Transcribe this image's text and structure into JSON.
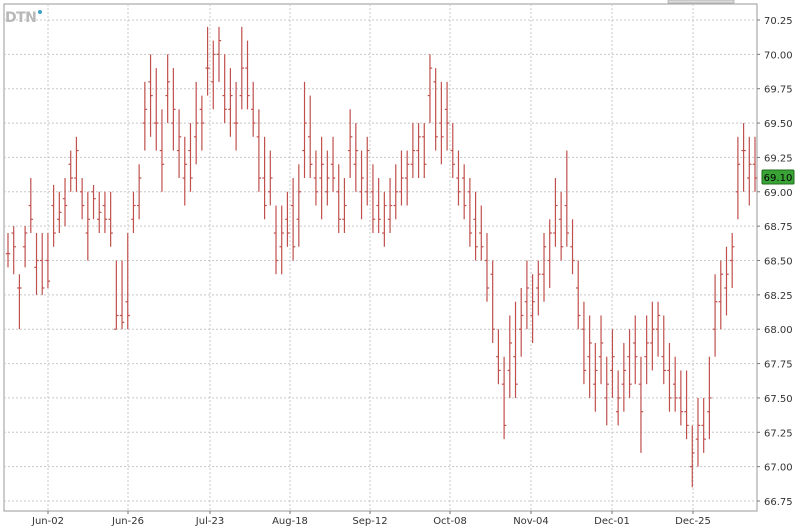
{
  "brand": {
    "logo_text": "DTN"
  },
  "chart_data": {
    "type": "bar",
    "subtype": "ohlc",
    "title": "",
    "xlabel": "",
    "ylabel": "",
    "ylim": [
      66.7,
      70.3
    ],
    "y_ticks": [
      "70.25",
      "70.00",
      "69.75",
      "69.50",
      "69.25",
      "69.00",
      "68.75",
      "68.50",
      "68.25",
      "68.00",
      "67.75",
      "67.50",
      "67.25",
      "67.00",
      "66.75"
    ],
    "x_ticks": [
      "Jun-02",
      "Jun-26",
      "Jul-23",
      "Aug-18",
      "Sep-12",
      "Oct-08",
      "Nov-04",
      "Dec-01",
      "Dec-25"
    ],
    "grid": true,
    "last_price": "69.10",
    "colors": {
      "bar": "#c0504d",
      "grid": "#c8c8c8",
      "last_price_bg": "#3aa335",
      "logo_dot": "#3aa2c8"
    },
    "series": [
      {
        "values": [
          [
            68.55,
            68.7,
            68.45,
            68.55
          ],
          [
            68.7,
            68.75,
            68.4,
            68.6
          ],
          [
            68.3,
            68.4,
            68.0,
            68.3
          ],
          [
            68.6,
            68.75,
            68.45,
            68.7
          ],
          [
            68.9,
            69.1,
            68.7,
            68.8
          ],
          [
            68.45,
            68.7,
            68.25,
            68.5
          ],
          [
            68.5,
            68.7,
            68.25,
            68.3
          ],
          [
            68.5,
            68.7,
            68.3,
            68.35
          ],
          [
            68.9,
            69.05,
            68.6,
            68.7
          ],
          [
            68.8,
            69.0,
            68.7,
            68.85
          ],
          [
            68.95,
            69.1,
            68.75,
            68.9
          ],
          [
            69.2,
            69.3,
            69.0,
            69.1
          ],
          [
            69.1,
            69.4,
            69.0,
            69.3
          ],
          [
            69.0,
            69.1,
            68.8,
            68.9
          ],
          [
            68.7,
            69.0,
            68.5,
            68.8
          ],
          [
            69.0,
            69.05,
            68.8,
            68.95
          ],
          [
            68.8,
            69.0,
            68.7,
            68.85
          ],
          [
            68.9,
            69.0,
            68.7,
            68.8
          ],
          [
            68.8,
            69.0,
            68.6,
            68.7
          ],
          [
            68.0,
            68.5,
            68.0,
            68.1
          ],
          [
            68.1,
            68.5,
            68.0,
            68.05
          ],
          [
            68.2,
            68.7,
            68.0,
            68.1
          ],
          [
            68.8,
            69.0,
            68.7,
            68.9
          ],
          [
            68.9,
            69.2,
            68.8,
            69.1
          ],
          [
            69.5,
            69.8,
            69.3,
            69.6
          ],
          [
            69.8,
            70.0,
            69.4,
            69.7
          ],
          [
            69.5,
            69.9,
            69.3,
            69.5
          ],
          [
            69.3,
            69.6,
            69.0,
            69.2
          ],
          [
            69.7,
            70.0,
            69.5,
            69.8
          ],
          [
            69.5,
            69.9,
            69.3,
            69.6
          ],
          [
            69.3,
            69.6,
            69.1,
            69.4
          ],
          [
            69.1,
            69.4,
            68.9,
            69.2
          ],
          [
            69.3,
            69.5,
            69.0,
            69.1
          ],
          [
            69.4,
            69.8,
            69.2,
            69.5
          ],
          [
            69.6,
            69.7,
            69.3,
            69.5
          ],
          [
            69.9,
            70.2,
            69.7,
            69.9
          ],
          [
            69.8,
            70.1,
            69.6,
            70.0
          ],
          [
            70.0,
            70.2,
            69.8,
            70.1
          ],
          [
            69.7,
            70.0,
            69.5,
            69.6
          ],
          [
            69.6,
            69.9,
            69.4,
            69.7
          ],
          [
            69.5,
            69.8,
            69.3,
            69.5
          ],
          [
            69.7,
            70.2,
            69.6,
            69.9
          ],
          [
            69.9,
            70.1,
            69.6,
            69.7
          ],
          [
            69.6,
            69.8,
            69.4,
            69.5
          ],
          [
            69.4,
            69.6,
            69.0,
            69.1
          ],
          [
            69.1,
            69.4,
            68.8,
            68.9
          ],
          [
            69.0,
            69.3,
            68.9,
            69.1
          ],
          [
            68.7,
            68.9,
            68.4,
            68.5
          ],
          [
            68.6,
            68.9,
            68.4,
            68.7
          ],
          [
            68.8,
            69.0,
            68.6,
            68.7
          ],
          [
            68.9,
            69.1,
            68.5,
            68.6
          ],
          [
            68.8,
            69.2,
            68.6,
            69.0
          ],
          [
            69.3,
            69.8,
            69.1,
            69.5
          ],
          [
            69.4,
            69.7,
            69.1,
            69.2
          ],
          [
            69.1,
            69.3,
            68.9,
            69.0
          ],
          [
            69.1,
            69.4,
            68.8,
            69.2
          ],
          [
            69.0,
            69.3,
            68.9,
            69.1
          ],
          [
            69.2,
            69.4,
            69.0,
            69.1
          ],
          [
            69.0,
            69.2,
            68.7,
            68.8
          ],
          [
            68.8,
            69.1,
            68.7,
            68.9
          ],
          [
            69.3,
            69.6,
            69.1,
            69.4
          ],
          [
            69.2,
            69.5,
            69.0,
            69.3
          ],
          [
            69.0,
            69.3,
            68.8,
            69.1
          ],
          [
            69.0,
            69.4,
            68.9,
            69.3
          ],
          [
            69.0,
            69.2,
            68.7,
            68.8
          ],
          [
            68.9,
            69.1,
            68.7,
            68.8
          ],
          [
            68.7,
            69.0,
            68.6,
            68.9
          ],
          [
            68.8,
            69.1,
            68.7,
            68.9
          ],
          [
            68.9,
            69.2,
            68.8,
            69.0
          ],
          [
            69.0,
            69.3,
            68.9,
            69.1
          ],
          [
            69.1,
            69.3,
            68.9,
            69.2
          ],
          [
            69.2,
            69.5,
            69.1,
            69.3
          ],
          [
            69.3,
            69.5,
            69.1,
            69.4
          ],
          [
            69.4,
            69.5,
            69.1,
            69.2
          ],
          [
            69.7,
            70.0,
            69.5,
            69.9
          ],
          [
            69.8,
            69.9,
            69.3,
            69.4
          ],
          [
            69.5,
            69.8,
            69.2,
            69.4
          ],
          [
            69.6,
            69.8,
            69.3,
            69.5
          ],
          [
            69.3,
            69.5,
            69.1,
            69.2
          ],
          [
            69.1,
            69.3,
            68.9,
            69.0
          ],
          [
            69.1,
            69.2,
            68.8,
            68.9
          ],
          [
            69.0,
            69.1,
            68.6,
            68.7
          ],
          [
            68.8,
            69.0,
            68.5,
            68.6
          ],
          [
            68.7,
            68.9,
            68.5,
            68.6
          ],
          [
            68.5,
            68.7,
            68.2,
            68.3
          ],
          [
            68.4,
            68.5,
            67.9,
            68.0
          ],
          [
            67.8,
            68.0,
            67.6,
            67.7
          ],
          [
            67.6,
            67.8,
            67.2,
            67.3
          ],
          [
            67.7,
            68.1,
            67.5,
            67.9
          ],
          [
            67.8,
            68.2,
            67.5,
            67.6
          ],
          [
            68.0,
            68.3,
            67.8,
            68.1
          ],
          [
            68.2,
            68.5,
            68.0,
            68.3
          ],
          [
            68.1,
            68.4,
            67.9,
            68.2
          ],
          [
            68.3,
            68.5,
            68.1,
            68.4
          ],
          [
            68.4,
            68.7,
            68.2,
            68.6
          ],
          [
            68.5,
            68.8,
            68.3,
            68.7
          ],
          [
            68.7,
            69.1,
            68.6,
            68.9
          ],
          [
            68.8,
            69.0,
            68.5,
            68.6
          ],
          [
            68.9,
            69.3,
            68.6,
            68.7
          ],
          [
            68.6,
            68.8,
            68.4,
            68.5
          ],
          [
            68.3,
            68.5,
            68.0,
            68.1
          ],
          [
            68.0,
            68.2,
            67.6,
            67.7
          ],
          [
            67.8,
            68.1,
            67.5,
            67.9
          ],
          [
            67.6,
            67.9,
            67.4,
            67.7
          ],
          [
            67.8,
            68.1,
            67.6,
            67.9
          ],
          [
            67.5,
            67.8,
            67.3,
            67.6
          ],
          [
            67.7,
            68.0,
            67.5,
            67.8
          ],
          [
            67.4,
            67.7,
            67.3,
            67.5
          ],
          [
            67.6,
            67.9,
            67.4,
            67.7
          ],
          [
            67.8,
            68.0,
            67.5,
            67.6
          ],
          [
            67.9,
            68.1,
            67.6,
            67.8
          ],
          [
            67.6,
            67.8,
            67.1,
            67.4
          ],
          [
            67.8,
            68.1,
            67.6,
            67.9
          ],
          [
            67.9,
            68.2,
            67.7,
            68.0
          ],
          [
            68.0,
            68.2,
            67.8,
            68.1
          ],
          [
            67.8,
            68.1,
            67.6,
            67.7
          ],
          [
            67.7,
            67.9,
            67.4,
            67.5
          ],
          [
            67.6,
            67.8,
            67.4,
            67.5
          ],
          [
            67.5,
            67.7,
            67.3,
            67.4
          ],
          [
            67.4,
            67.7,
            67.2,
            67.3
          ],
          [
            67.0,
            67.3,
            66.85,
            67.1
          ],
          [
            67.2,
            67.5,
            67.0,
            67.3
          ],
          [
            67.3,
            67.5,
            67.1,
            67.2
          ],
          [
            67.4,
            67.8,
            67.2,
            67.5
          ],
          [
            68.0,
            68.4,
            67.8,
            68.2
          ],
          [
            68.2,
            68.5,
            68.0,
            68.4
          ],
          [
            68.3,
            68.6,
            68.1,
            68.4
          ],
          [
            68.5,
            68.7,
            68.3,
            68.6
          ],
          [
            69.0,
            69.4,
            68.8,
            69.2
          ],
          [
            69.3,
            69.5,
            69.0,
            69.3
          ],
          [
            69.1,
            69.4,
            68.9,
            69.2
          ],
          [
            69.2,
            69.4,
            69.0,
            69.1
          ]
        ]
      }
    ]
  }
}
